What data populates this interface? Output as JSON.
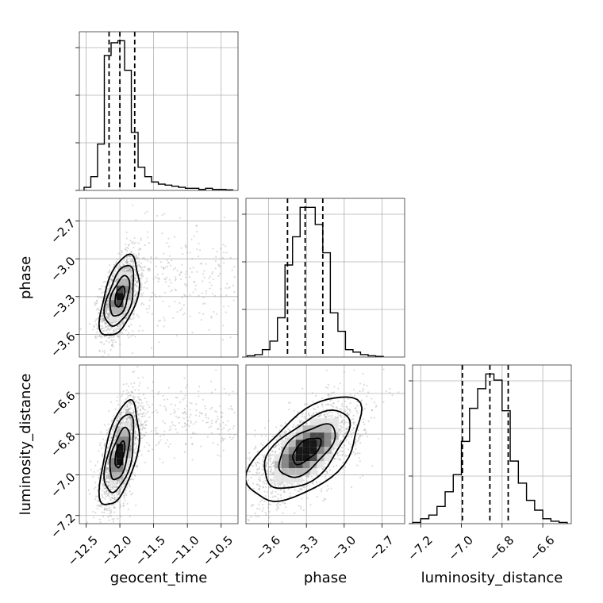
{
  "chart_data": {
    "type": "corner",
    "parameters": [
      "geocent_time",
      "phase",
      "luminosity_distance"
    ],
    "axis_labels": [
      "geocent_time",
      "phase",
      "luminosity_distance"
    ],
    "ranges": {
      "geocent_time": [
        -12.6,
        -10.25
      ],
      "phase": [
        -3.78,
        -2.52
      ],
      "luminosity_distance": [
        -7.24,
        -6.46
      ]
    },
    "ticks": {
      "geocent_time": [
        -12.5,
        -12.0,
        -11.5,
        -11.0,
        -10.5
      ],
      "phase": [
        -3.6,
        -3.3,
        -3.0,
        -2.7
      ],
      "luminosity_distance": [
        -7.2,
        -7.0,
        -6.8,
        -6.6
      ]
    },
    "tick_labels": {
      "geocent_time": [
        "−12.5",
        "−12.0",
        "−11.5",
        "−11.0",
        "−10.5"
      ],
      "phase": [
        "−3.6",
        "−3.3",
        "−3.0",
        "−2.7"
      ],
      "luminosity_distance": [
        "−7.2",
        "−7.0",
        "−6.8",
        "−6.6"
      ]
    },
    "histograms": {
      "geocent_time": {
        "bin_edges": [
          -12.53,
          -12.43,
          -12.33,
          -12.23,
          -12.13,
          -12.03,
          -11.93,
          -11.83,
          -11.73,
          -11.63,
          -11.53,
          -11.43,
          -11.33,
          -11.23,
          -11.13,
          -11.03,
          -10.93,
          -10.83,
          -10.73,
          -10.63,
          -10.53,
          -10.43,
          -10.33
        ],
        "counts": [
          3,
          13,
          44,
          128,
          140,
          142,
          114,
          55,
          22,
          13,
          8,
          6,
          5,
          4,
          3,
          2,
          2,
          1,
          2,
          1,
          1,
          0.5
        ],
        "quantiles": [
          -12.16,
          -12.0,
          -11.78
        ]
      },
      "phase": {
        "bin_edges": [
          -3.77,
          -3.71,
          -3.65,
          -3.59,
          -3.53,
          -3.47,
          -3.41,
          -3.35,
          -3.29,
          -3.23,
          -3.17,
          -3.11,
          -3.05,
          -2.99,
          -2.93,
          -2.87,
          -2.81,
          -2.75,
          -2.69
        ],
        "counts": [
          1,
          2,
          6,
          13,
          32,
          75,
          98,
          122,
          122,
          108,
          85,
          36,
          21,
          6,
          4,
          2,
          1,
          0.5
        ],
        "quantiles": [
          -3.45,
          -3.31,
          -3.17
        ]
      },
      "luminosity_distance": {
        "bin_edges": [
          -7.24,
          -7.2,
          -7.16,
          -7.12,
          -7.08,
          -7.04,
          -7.0,
          -6.96,
          -6.92,
          -6.88,
          -6.84,
          -6.8,
          -6.76,
          -6.72,
          -6.68,
          -6.64,
          -6.6,
          -6.56,
          -6.52,
          -6.48
        ],
        "counts": [
          1,
          4,
          7,
          14,
          26,
          40,
          67,
          94,
          110,
          122,
          117,
          92,
          51,
          33,
          19,
          11,
          4,
          2,
          1
        ],
        "quantiles": [
          -6.995,
          -6.86,
          -6.77
        ]
      }
    },
    "pairs": [
      {
        "x": "geocent_time",
        "y": "phase",
        "center": [
          -12.0,
          -3.3
        ],
        "sigma": [
          0.09,
          0.1
        ],
        "rho": 0.5,
        "tail": {
          "x_range": [
            -11.9,
            -10.3
          ],
          "y_mean": -3.15,
          "y_sd": 0.2,
          "fraction": 0.2
        },
        "contour_levels_sigma": [
          0.5,
          1.0,
          1.5,
          2.0
        ]
      },
      {
        "x": "geocent_time",
        "y": "luminosity_distance",
        "center": [
          -12.0,
          -6.9
        ],
        "sigma": [
          0.09,
          0.08
        ],
        "rho": 0.55,
        "tail": {
          "x_range": [
            -11.9,
            -10.3
          ],
          "y_mean": -6.72,
          "y_sd": 0.09,
          "fraction": 0.2
        },
        "contour_levels_sigma": [
          0.5,
          1.0,
          1.5,
          2.0
        ]
      },
      {
        "x": "phase",
        "y": "luminosity_distance",
        "center": [
          -3.3,
          -6.88
        ],
        "sigma": [
          0.14,
          0.08
        ],
        "rho": 0.6,
        "contour_levels_sigma": [
          0.5,
          1.0,
          1.5,
          2.0
        ]
      }
    ],
    "colors": {
      "line": "#000000",
      "scatter": "#9a9a9a",
      "density": [
        "#e4e4e4",
        "#b4b4b4",
        "#7c7c7c",
        "#3a3a3a",
        "#000000"
      ]
    },
    "grid": true
  }
}
